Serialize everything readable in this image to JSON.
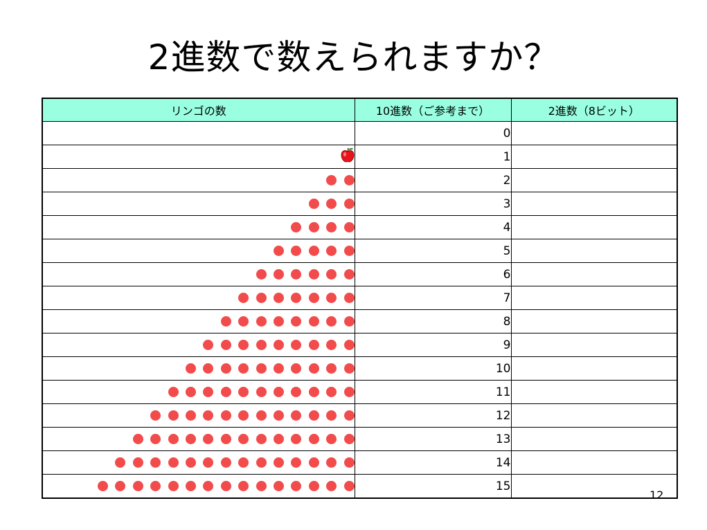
{
  "slide": {
    "title": "2進数で数えられますか？",
    "page_number": "12"
  },
  "table": {
    "headers": [
      "リンゴの数",
      "10進数（ご参考まで）",
      "2進数（8ビット）"
    ],
    "rows": [
      {
        "apples": 0,
        "decimal": "0",
        "binary": ""
      },
      {
        "apples": 1,
        "decimal": "1",
        "binary": ""
      },
      {
        "apples": 2,
        "decimal": "2",
        "binary": ""
      },
      {
        "apples": 3,
        "decimal": "3",
        "binary": ""
      },
      {
        "apples": 4,
        "decimal": "4",
        "binary": ""
      },
      {
        "apples": 5,
        "decimal": "5",
        "binary": ""
      },
      {
        "apples": 6,
        "decimal": "6",
        "binary": ""
      },
      {
        "apples": 7,
        "decimal": "7",
        "binary": ""
      },
      {
        "apples": 8,
        "decimal": "8",
        "binary": ""
      },
      {
        "apples": 9,
        "decimal": "9",
        "binary": ""
      },
      {
        "apples": 10,
        "decimal": "10",
        "binary": ""
      },
      {
        "apples": 11,
        "decimal": "11",
        "binary": ""
      },
      {
        "apples": 12,
        "decimal": "12",
        "binary": ""
      },
      {
        "apples": 13,
        "decimal": "13",
        "binary": ""
      },
      {
        "apples": 14,
        "decimal": "14",
        "binary": ""
      },
      {
        "apples": 15,
        "decimal": "15",
        "binary": ""
      }
    ]
  },
  "icons": {
    "single_apple": "apple-icon",
    "apple_dot": "apple-dot-icon"
  },
  "colors": {
    "header_background": "#99ffe0",
    "apple_dot": "#f24b4b",
    "apple_body": "#e8141c",
    "apple_leaf": "#2e8b2e",
    "border": "#000000"
  }
}
